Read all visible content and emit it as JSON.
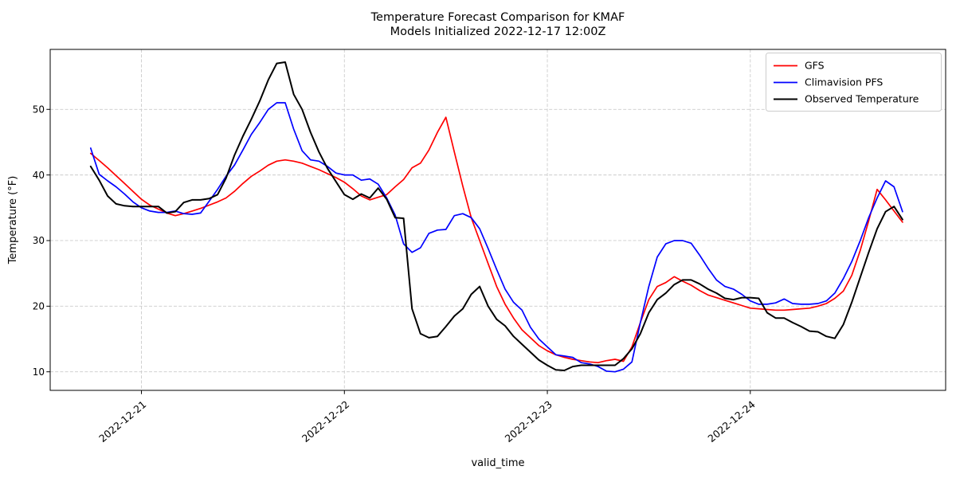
{
  "title": {
    "line1": "Temperature Forecast Comparison for KMAF",
    "line2": "Models Initialized 2022-12-17 12:00Z"
  },
  "axes": {
    "xlabel": "valid_time",
    "ylabel": "Temperature (°F)",
    "x_tick_labels": [
      "2022-12-21",
      "2022-12-22",
      "2022-12-23",
      "2022-12-24"
    ],
    "y_tick_labels": [
      "10",
      "20",
      "30",
      "40",
      "50"
    ]
  },
  "legend": [
    {
      "label": "GFS",
      "color": "#ff0000"
    },
    {
      "label": "Climavision PFS",
      "color": "#0000ff"
    },
    {
      "label": "Observed Temperature",
      "color": "#000000"
    }
  ],
  "colors": {
    "grid": "#cccccc",
    "spine": "#000000",
    "background": "#ffffff"
  },
  "chart_data": {
    "type": "line",
    "title": "Temperature Forecast Comparison for KMAF\nModels Initialized 2022-12-17 12:00Z",
    "xlabel": "valid_time",
    "ylabel": "Temperature (°F)",
    "grid": "dashed",
    "legend_position": "upper right",
    "x_start_time": "2022-12-20 18:00Z",
    "x_end_time": "2022-12-24 18:00Z",
    "x_step_hours": 1,
    "x_start_hour": -6,
    "xlim_hours": [
      -10.79,
      95.1
    ],
    "ylim": [
      7.17,
      59.14
    ],
    "x_ticks_hours": [
      0,
      24,
      48,
      72
    ],
    "y_ticks": [
      10,
      20,
      30,
      40,
      50
    ],
    "series": [
      {
        "name": "GFS",
        "color": "#ff0000",
        "width": 1.7,
        "values": [
          43.3,
          42.2,
          41.1,
          39.9,
          38.7,
          37.5,
          36.3,
          35.4,
          34.8,
          34.2,
          33.8,
          34.1,
          34.5,
          34.9,
          35.4,
          35.9,
          36.5,
          37.5,
          38.7,
          39.8,
          40.6,
          41.5,
          42.1,
          42.3,
          42.1,
          41.8,
          41.3,
          40.8,
          40.2,
          39.6,
          38.9,
          37.9,
          36.8,
          36.2,
          36.6,
          37.0,
          38.2,
          39.3,
          41.1,
          41.8,
          43.8,
          46.5,
          48.8,
          43.5,
          38.3,
          33.5,
          30.0,
          26.5,
          23.0,
          20.3,
          18.2,
          16.4,
          15.2,
          14.0,
          13.2,
          12.6,
          12.2,
          11.9,
          11.7,
          11.5,
          11.4,
          11.7,
          11.9,
          11.6,
          13.8,
          17.5,
          21.0,
          23.0,
          23.6,
          24.5,
          23.8,
          23.2,
          22.4,
          21.7,
          21.3,
          20.9,
          20.5,
          20.1,
          19.7,
          19.6,
          19.5,
          19.4,
          19.4,
          19.5,
          19.6,
          19.7,
          20.0,
          20.4,
          21.2,
          22.3,
          24.7,
          28.5,
          33.0,
          37.8,
          36.2,
          34.5,
          32.8
        ]
      },
      {
        "name": "Climavision PFS",
        "color": "#0000ff",
        "width": 1.7,
        "values": [
          44.1,
          40.1,
          39.1,
          38.2,
          37.1,
          35.9,
          35.0,
          34.5,
          34.3,
          34.3,
          34.5,
          34.1,
          34.0,
          34.2,
          36.0,
          37.8,
          39.8,
          41.5,
          43.8,
          46.2,
          48.0,
          50.0,
          51.0,
          51.0,
          47.0,
          43.7,
          42.3,
          42.1,
          41.3,
          40.3,
          40.0,
          40.0,
          39.2,
          39.4,
          38.6,
          36.5,
          33.9,
          29.5,
          28.2,
          28.9,
          31.1,
          31.6,
          31.7,
          33.8,
          34.1,
          33.5,
          31.8,
          28.8,
          25.6,
          22.6,
          20.6,
          19.4,
          16.8,
          15.0,
          13.8,
          12.6,
          12.4,
          12.2,
          11.4,
          11.2,
          10.8,
          10.1,
          10.0,
          10.4,
          11.5,
          17.5,
          23.0,
          27.5,
          29.5,
          30.0,
          30.0,
          29.6,
          27.8,
          25.8,
          24.0,
          23.0,
          22.6,
          21.8,
          20.8,
          20.3,
          20.3,
          20.5,
          21.1,
          20.4,
          20.3,
          20.3,
          20.4,
          20.8,
          22.0,
          24.2,
          26.8,
          30.0,
          33.5,
          36.5,
          39.1,
          38.2,
          34.4
        ]
      },
      {
        "name": "Observed Temperature",
        "color": "#000000",
        "width": 2.0,
        "values": [
          41.3,
          39.2,
          36.8,
          35.6,
          35.3,
          35.2,
          35.2,
          35.2,
          35.2,
          34.2,
          34.4,
          35.8,
          36.2,
          36.2,
          36.4,
          37.0,
          39.5,
          43.0,
          45.9,
          48.5,
          51.3,
          54.5,
          57.0,
          57.2,
          52.3,
          50.0,
          46.5,
          43.5,
          41.0,
          39.0,
          37.0,
          36.3,
          37.1,
          36.5,
          38.0,
          36.3,
          33.5,
          33.4,
          19.6,
          15.8,
          15.2,
          15.4,
          16.9,
          18.5,
          19.6,
          21.8,
          23.0,
          20.0,
          18.0,
          17.0,
          15.4,
          14.2,
          13.0,
          11.8,
          11.0,
          10.3,
          10.2,
          10.8,
          11.0,
          11.0,
          11.0,
          11.0,
          11.0,
          12.0,
          13.5,
          15.8,
          19.0,
          21.0,
          22.0,
          23.3,
          24.0,
          24.0,
          23.4,
          22.6,
          22.0,
          21.2,
          21.0,
          21.3,
          21.3,
          21.2,
          19.0,
          18.2,
          18.2,
          17.5,
          16.9,
          16.2,
          16.1,
          15.4,
          15.1,
          17.2,
          20.6,
          24.4,
          28.2,
          31.8,
          34.4,
          35.2,
          33.2
        ]
      }
    ]
  }
}
